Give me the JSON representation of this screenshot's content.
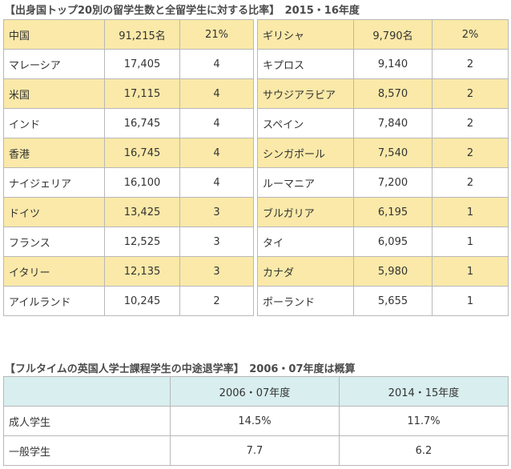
{
  "table1": {
    "title": "【出身国トップ20別の留学生数と全留学生に対する比率】　2015・16年度",
    "rows": [
      {
        "c1": "中国",
        "n1": "91,215名",
        "p1": "21%",
        "c2": "ギリシャ",
        "n2": "9,790名",
        "p2": "2%",
        "highlight": true
      },
      {
        "c1": "マレーシア",
        "n1": "17,405",
        "p1": "4",
        "c2": "キプロス",
        "n2": "9,140",
        "p2": "2",
        "highlight": false
      },
      {
        "c1": "米国",
        "n1": "17,115",
        "p1": "4",
        "c2": "サウジアラビア",
        "n2": "8,570",
        "p2": "2",
        "highlight": true
      },
      {
        "c1": "インド",
        "n1": "16,745",
        "p1": "4",
        "c2": "スペイン",
        "n2": "7,840",
        "p2": "2",
        "highlight": false
      },
      {
        "c1": "香港",
        "n1": "16,745",
        "p1": "4",
        "c2": "シンガポール",
        "n2": "7,540",
        "p2": "2",
        "highlight": true
      },
      {
        "c1": "ナイジェリア",
        "n1": "16,100",
        "p1": "4",
        "c2": "ルーマニア",
        "n2": "7,200",
        "p2": "2",
        "highlight": false
      },
      {
        "c1": "ドイツ",
        "n1": "13,425",
        "p1": "3",
        "c2": "ブルガリア",
        "n2": "6,195",
        "p2": "1",
        "highlight": true
      },
      {
        "c1": "フランス",
        "n1": "12,525",
        "p1": "3",
        "c2": "タイ",
        "n2": "6,095",
        "p2": "1",
        "highlight": false
      },
      {
        "c1": "イタリー",
        "n1": "12,135",
        "p1": "3",
        "c2": "カナダ",
        "n2": "5,980",
        "p2": "1",
        "highlight": true
      },
      {
        "c1": "アイルランド",
        "n1": "10,245",
        "p1": "2",
        "c2": "ポーランド",
        "n2": "5,655",
        "p2": "1",
        "highlight": false
      }
    ]
  },
  "table2": {
    "title": "【フルタイムの英国人学士課程学生の中途退学率】　2006・07年度は概算",
    "headers": [
      "",
      "2006・07年度",
      "2014・15年度"
    ],
    "rows": [
      {
        "label": "成人学生",
        "v1": "14.5%",
        "v2": "11.7%"
      },
      {
        "label": "一般学生",
        "v1": "7.7",
        "v2": "6.2"
      }
    ]
  }
}
